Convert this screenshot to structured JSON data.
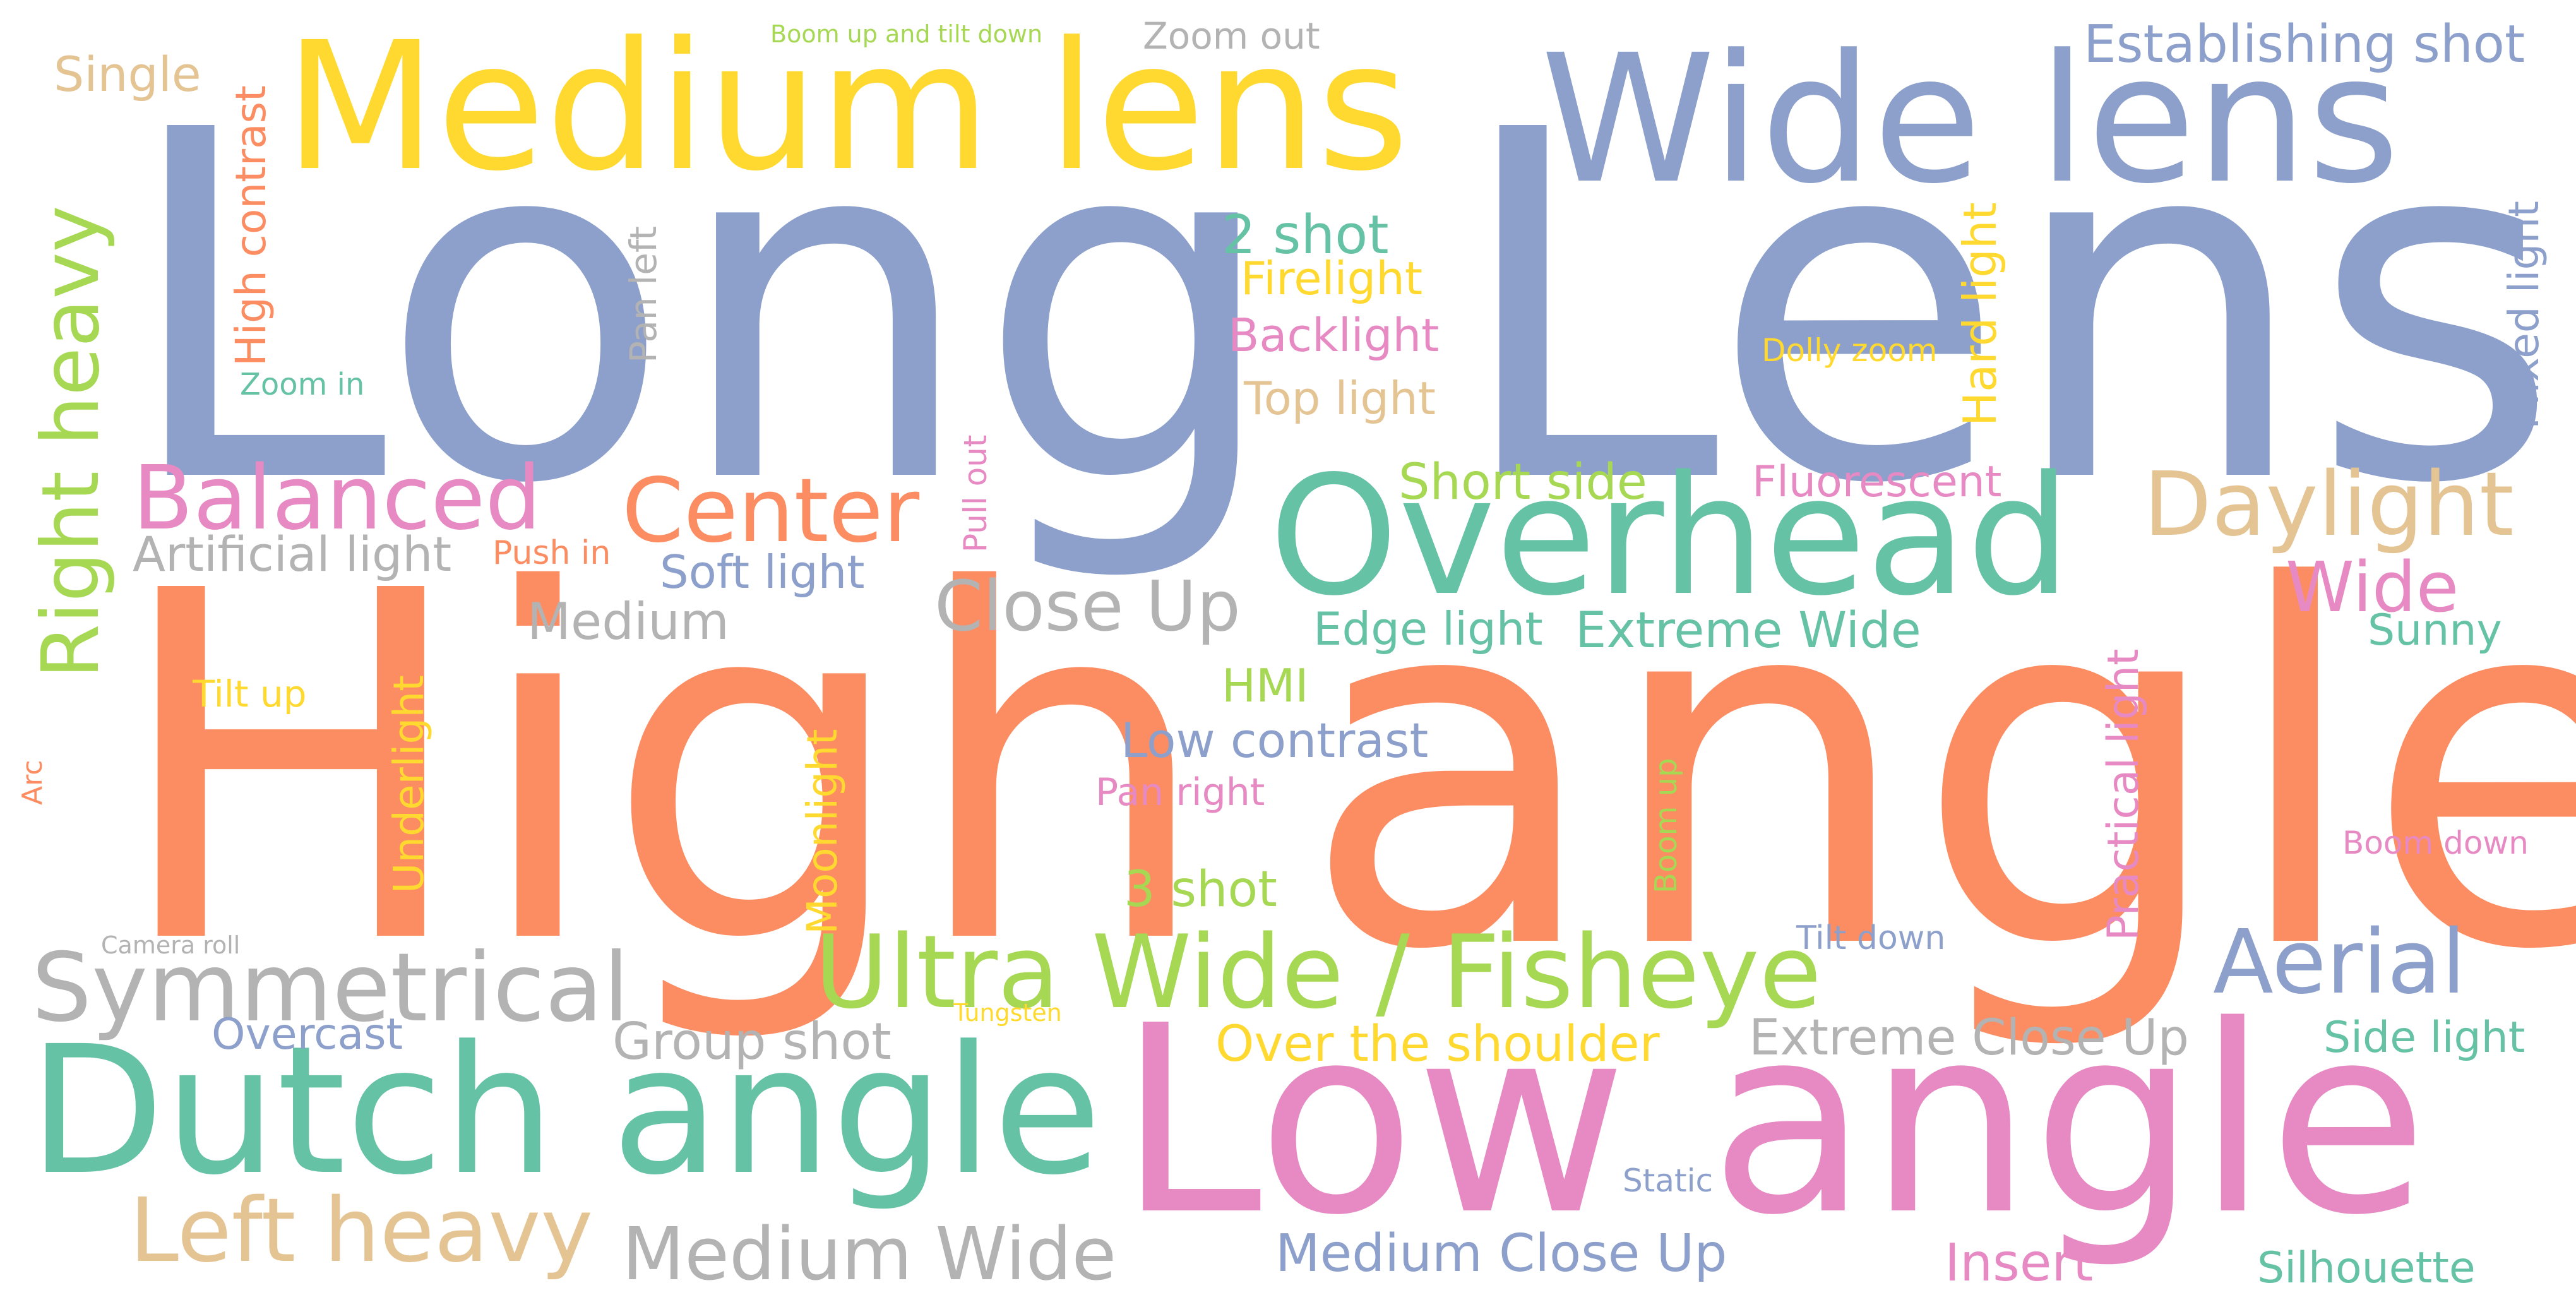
{
  "words": [
    {
      "text": "Long",
      "color": "blue"
    },
    {
      "text": "Lens",
      "color": "blue"
    },
    {
      "text": "High",
      "color": "orange"
    },
    {
      "text": "angle",
      "color": "orange"
    },
    {
      "text": "Low angle",
      "color": "pink"
    },
    {
      "text": "Medium lens",
      "color": "yellow"
    },
    {
      "text": "Wide lens",
      "color": "blue"
    },
    {
      "text": "Overhead",
      "color": "green"
    },
    {
      "text": "Dutch angle",
      "color": "green"
    },
    {
      "text": "Ultra Wide / Fisheye",
      "color": "lime"
    },
    {
      "text": "Symmetrical",
      "color": "gray"
    },
    {
      "text": "Left heavy",
      "color": "tan"
    },
    {
      "text": "Medium Wide",
      "color": "gray"
    },
    {
      "text": "Right heavy",
      "color": "lime"
    },
    {
      "text": "Balanced",
      "color": "pink"
    },
    {
      "text": "Center",
      "color": "orange"
    },
    {
      "text": "Daylight",
      "color": "tan"
    },
    {
      "text": "Aerial",
      "color": "blue"
    },
    {
      "text": "Close Up",
      "color": "gray"
    },
    {
      "text": "Establishing shot",
      "color": "blue"
    },
    {
      "text": "Wide",
      "color": "pink"
    },
    {
      "text": "Extreme Wide",
      "color": "green"
    },
    {
      "text": "Extreme Close Up",
      "color": "gray"
    },
    {
      "text": "Medium Close Up",
      "color": "blue"
    },
    {
      "text": "Over the shoulder",
      "color": "yellow"
    },
    {
      "text": "Group shot",
      "color": "gray"
    },
    {
      "text": "Medium",
      "color": "gray"
    },
    {
      "text": "Artificial light",
      "color": "gray"
    },
    {
      "text": "Soft light",
      "color": "blue"
    },
    {
      "text": "Short side",
      "color": "lime"
    },
    {
      "text": "Fluorescent",
      "color": "pink"
    },
    {
      "text": "Edge light",
      "color": "green"
    },
    {
      "text": "Low contrast",
      "color": "blue"
    },
    {
      "text": "High contrast",
      "color": "orange"
    },
    {
      "text": "2 shot",
      "color": "green"
    },
    {
      "text": "3 shot",
      "color": "lime"
    },
    {
      "text": "Firelight",
      "color": "yellow"
    },
    {
      "text": "Backlight",
      "color": "pink"
    },
    {
      "text": "Top light",
      "color": "tan"
    },
    {
      "text": "Hard light",
      "color": "yellow"
    },
    {
      "text": "Mixed light",
      "color": "blue"
    },
    {
      "text": "Practical light",
      "color": "pink"
    },
    {
      "text": "Moonlight",
      "color": "yellow"
    },
    {
      "text": "Underlight",
      "color": "yellow"
    },
    {
      "text": "Single",
      "color": "tan"
    },
    {
      "text": "Zoom out",
      "color": "gray"
    },
    {
      "text": "Boom up and tilt down",
      "color": "lime"
    },
    {
      "text": "Zoom in",
      "color": "green"
    },
    {
      "text": "Pan left",
      "color": "gray"
    },
    {
      "text": "Pull out",
      "color": "pink"
    },
    {
      "text": "Push in",
      "color": "orange"
    },
    {
      "text": "Dolly zoom",
      "color": "yellow"
    },
    {
      "text": "HMI",
      "color": "lime"
    },
    {
      "text": "Pan right",
      "color": "pink"
    },
    {
      "text": "Tilt up",
      "color": "yellow"
    },
    {
      "text": "Arc",
      "color": "orange"
    },
    {
      "text": "Camera roll",
      "color": "gray"
    },
    {
      "text": "Tungsten",
      "color": "yellow"
    },
    {
      "text": "Overcast",
      "color": "blue"
    },
    {
      "text": "Boom up",
      "color": "lime"
    },
    {
      "text": "Tilt down",
      "color": "blue"
    },
    {
      "text": "Boom down",
      "color": "pink"
    },
    {
      "text": "Sunny",
      "color": "green"
    },
    {
      "text": "Side light",
      "color": "green"
    },
    {
      "text": "Static",
      "color": "blue"
    },
    {
      "text": "Insert",
      "color": "pink"
    },
    {
      "text": "Silhouette",
      "color": "green"
    }
  ],
  "palette": {
    "blue": "#8da0cb",
    "orange": "#fc8d62",
    "green": "#66c2a5",
    "pink": "#e78ac3",
    "lime": "#a6d854",
    "yellow": "#ffd92f",
    "tan": "#e5c494",
    "gray": "#b3b3b3"
  }
}
